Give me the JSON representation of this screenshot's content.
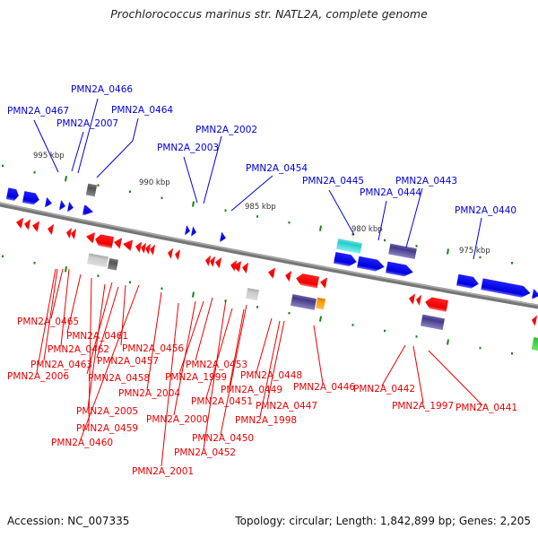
{
  "title": "Prochlorococcus marinus str. NATL2A, complete genome",
  "footer": {
    "accession": "Accession: NC_007335",
    "summary": "Topology: circular; Length: 1,842,899 bp; Genes: 2,205"
  },
  "colors": {
    "forward_gene": "#0000ee",
    "reverse_gene": "#ee0000",
    "forward_label": "#0000dd",
    "reverse_label": "#e80000",
    "backbone": "#888888",
    "tick": "#118811",
    "rna_gray": "#999999",
    "cog_purple": "#4a3f8f",
    "cog_cyan": "#22cccc",
    "cog_orange": "#ff9900",
    "cog_green": "#33cc33"
  },
  "scale_labels": [
    "995 kbp",
    "990 kbp",
    "985 kbp",
    "980 kbp",
    "975 kbp"
  ],
  "forward_labels": [
    "PMN2A_0467",
    "PMN2A_0466",
    "PMN2A_2007",
    "PMN2A_0464",
    "PMN2A_2003",
    "PMN2A_2002",
    "PMN2A_0454",
    "PMN2A_0445",
    "PMN2A_0444",
    "PMN2A_0443",
    "PMN2A_0440"
  ],
  "reverse_labels": [
    "PMN2A_0465",
    "PMN2A_0461",
    "PMN2A_0462",
    "PMN2A_0463",
    "PMN2A_2006",
    "PMN2A_0456",
    "PMN2A_0457",
    "PMN2A_0458",
    "PMN2A_2004",
    "PMN2A_2005",
    "PMN2A_0459",
    "PMN2A_0460",
    "PMN2A_0453",
    "PMN2A_1999",
    "PMN2A_2000",
    "PMN2A_2001",
    "PMN2A_0448",
    "PMN2A_0449",
    "PMN2A_0451",
    "PMN2A_0447",
    "PMN2A_1998",
    "PMN2A_0450",
    "PMN2A_0452",
    "PMN2A_0446",
    "PMN2A_0442",
    "PMN2A_1997",
    "PMN2A_0441"
  ]
}
